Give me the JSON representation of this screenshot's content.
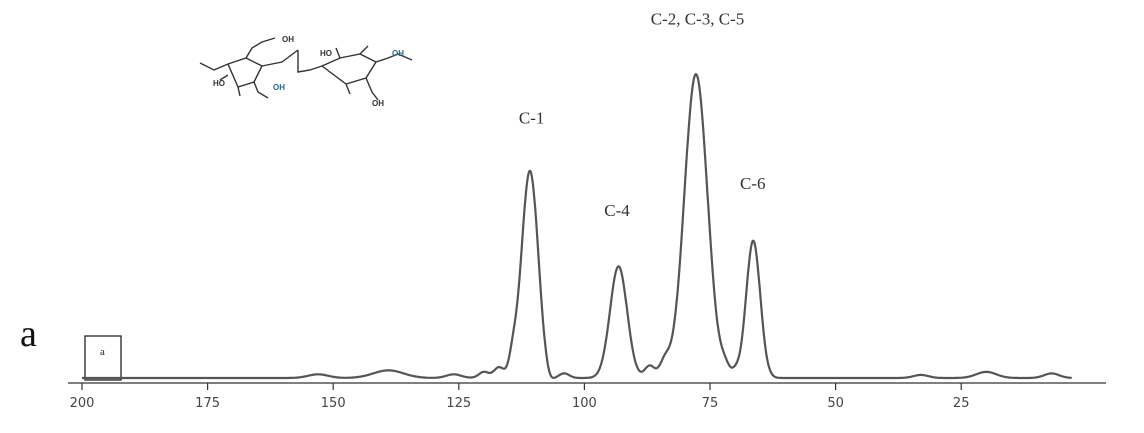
{
  "panel_letter": "a",
  "inset_box_label": "a",
  "molecule": {
    "labels": [
      "OH",
      "HO",
      "OH",
      "HO",
      "OH",
      "OH"
    ]
  },
  "chart_data": {
    "type": "line",
    "title": "",
    "xlabel": "",
    "ylabel": "",
    "x_reversed": true,
    "xlim": [
      200,
      3
    ],
    "ylim": [
      0,
      1
    ],
    "x_ticks": [
      200,
      175,
      150,
      125,
      100,
      75,
      50,
      25
    ],
    "x_tick_labels": [
      "200",
      "175",
      "150",
      "125",
      "100",
      "75",
      "50",
      "25"
    ],
    "annotations": [
      {
        "text": "C-1",
        "x": 110.5
      },
      {
        "text": "C-4",
        "x": 93.5
      },
      {
        "text": "C-2, C-3, C-5",
        "x": 77.5
      },
      {
        "text": "C-6",
        "x": 66.5
      }
    ],
    "peaks": [
      {
        "x": 111.5,
        "height": 0.372,
        "width": 1.5
      },
      {
        "x": 110.2,
        "height": 0.372,
        "width": 1.5
      },
      {
        "x": 93.2,
        "height": 0.365,
        "width": 1.7
      },
      {
        "x": 77.8,
        "height": 0.993,
        "width": 2.3
      },
      {
        "x": 66.4,
        "height": 0.449,
        "width": 1.4
      }
    ],
    "baseline_bumps": [
      {
        "x": 153,
        "height": 0.012,
        "width": 2
      },
      {
        "x": 139,
        "height": 0.025,
        "width": 3
      },
      {
        "x": 126,
        "height": 0.012,
        "width": 1.5
      },
      {
        "x": 120,
        "height": 0.02,
        "width": 1
      },
      {
        "x": 117,
        "height": 0.035,
        "width": 1
      },
      {
        "x": 114.2,
        "height": 0.06,
        "width": 0.8
      },
      {
        "x": 107,
        "height": -0.02,
        "width": 0.8
      },
      {
        "x": 104,
        "height": 0.015,
        "width": 1
      },
      {
        "x": 87,
        "height": 0.04,
        "width": 1
      },
      {
        "x": 84,
        "height": 0.05,
        "width": 1
      },
      {
        "x": 72,
        "height": 0.03,
        "width": 0.8
      },
      {
        "x": 70,
        "height": 0.02,
        "width": 0.8
      },
      {
        "x": 33,
        "height": 0.01,
        "width": 1.5
      },
      {
        "x": 20,
        "height": 0.02,
        "width": 2
      },
      {
        "x": 7,
        "height": 0.015,
        "width": 1.5
      }
    ]
  }
}
